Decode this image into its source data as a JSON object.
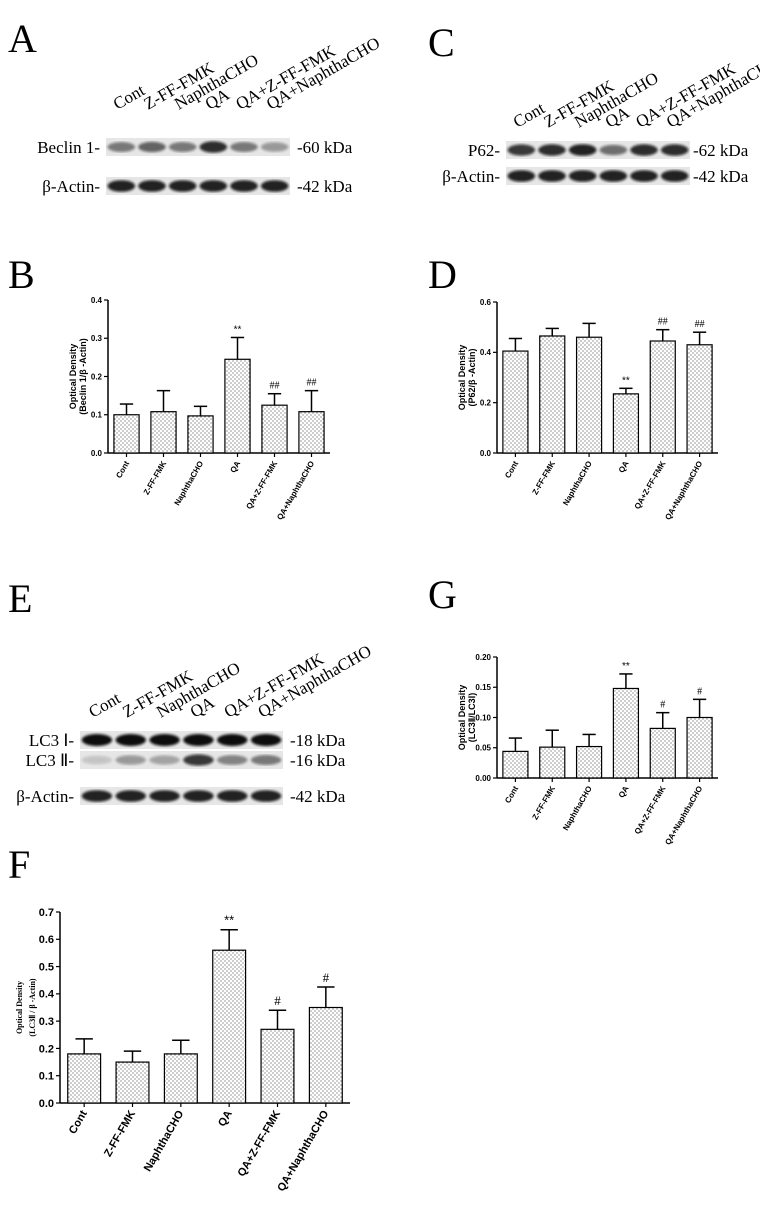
{
  "blots": [
    {
      "panel": "A",
      "lanes": [
        "Cont",
        "Z-FF-FMK",
        "NaphthaCHO",
        "QA",
        "QA+Z-FF-FMK",
        "QA+NaphthaCHO"
      ],
      "rows": [
        {
          "label": "Beclin 1-",
          "size": "-60 kDa"
        },
        {
          "label": "β-Actin-",
          "size": "-42 kDa"
        }
      ]
    },
    {
      "panel": "C",
      "lanes": [
        "Cont",
        "Z-FF-FMK",
        "NaphthaCHO",
        "QA",
        "QA+Z-FF-FMK",
        "QA+NaphthaCHO"
      ],
      "rows": [
        {
          "label": "P62-",
          "size": "-62 kDa"
        },
        {
          "label": "β-Actin-",
          "size": "-42 kDa"
        }
      ]
    },
    {
      "panel": "E",
      "lanes": [
        "Cont",
        "Z-FF-FMK",
        "NaphthaCHO",
        "QA",
        "QA+Z-FF-FMK",
        "QA+NaphthaCHO"
      ],
      "rows": [
        {
          "label": "LC3 Ⅰ-",
          "size": "-18 kDa"
        },
        {
          "label": "LC3 Ⅱ-",
          "size": "-16 kDa"
        },
        {
          "label": "β-Actin-",
          "size": "-42 kDa"
        }
      ]
    }
  ],
  "chart_data": [
    {
      "panel": "B",
      "type": "bar",
      "ylabel": [
        "Optical Density",
        "(Beclin 1/β -Actin)"
      ],
      "categories": [
        "Cont",
        "Z-FF-FMK",
        "NaphthaCHO",
        "QA",
        "QA+Z-FF-FMK",
        "QA+NaphthaCHO"
      ],
      "values": [
        0.1,
        0.108,
        0.097,
        0.245,
        0.125,
        0.108
      ],
      "errors": [
        0.028,
        0.055,
        0.025,
        0.057,
        0.03,
        0.055
      ],
      "annotations": [
        null,
        null,
        null,
        "**",
        "##",
        "##"
      ],
      "ylim": [
        0,
        0.4
      ],
      "yticks": [
        {
          "value": 0,
          "label": "0.0"
        },
        0.1,
        0.2,
        0.3,
        0.4
      ]
    },
    {
      "panel": "D",
      "type": "bar",
      "ylabel": [
        "Optical Density",
        "(P62/β -Actin)"
      ],
      "categories": [
        "Cont",
        "Z-FF-FMK",
        "NaphthaCHO",
        "QA",
        "QA+Z-FF-FMK",
        "QA+NaphthaCHO"
      ],
      "values": [
        0.405,
        0.465,
        0.46,
        0.235,
        0.445,
        0.43
      ],
      "errors": [
        0.05,
        0.03,
        0.055,
        0.022,
        0.045,
        0.05
      ],
      "annotations": [
        null,
        null,
        null,
        "**",
        "##",
        "##"
      ],
      "ylim": [
        0,
        0.6
      ],
      "yticks": [
        {
          "value": 0,
          "label": "0.0"
        },
        0.2,
        0.4,
        0.6
      ]
    },
    {
      "panel": "G",
      "type": "bar",
      "ylabel": [
        "Optical Density",
        "(LC3Ⅱ/LC3Ⅰ)"
      ],
      "categories": [
        "Cont",
        "Z-FF-FMK",
        "NaphthaCHO",
        "QA",
        "QA+Z-FF-FMK",
        "QA+NaphthaCHO"
      ],
      "values": [
        0.044,
        0.051,
        0.052,
        0.148,
        0.082,
        0.1
      ],
      "errors": [
        0.022,
        0.028,
        0.02,
        0.024,
        0.026,
        0.03
      ],
      "annotations": [
        null,
        null,
        null,
        "**",
        "#",
        "#"
      ],
      "ylim": [
        0,
        0.2
      ],
      "yticks": [
        {
          "value": 0,
          "label": "0.00"
        },
        0.05,
        {
          "value": 0.1,
          "label": "0.10"
        },
        0.15,
        {
          "value": 0.2,
          "label": "0.20"
        }
      ]
    },
    {
      "panel": "F",
      "type": "bar",
      "ylabel": [
        "Optical Density",
        "(LC3Ⅱ / β -Actin)"
      ],
      "categories": [
        "Cont",
        "Z-FF-FMK",
        "NaphthaCHO",
        "QA",
        "QA+Z-FF-FMK",
        "QA+NaphthaCHO"
      ],
      "values": [
        0.18,
        0.15,
        0.18,
        0.56,
        0.27,
        0.35
      ],
      "errors": [
        0.055,
        0.04,
        0.05,
        0.075,
        0.07,
        0.075
      ],
      "annotations": [
        null,
        null,
        null,
        "**",
        "#",
        "#"
      ],
      "ylim": [
        0,
        0.7
      ],
      "yticks": [
        {
          "value": 0,
          "label": "0.0"
        },
        0.1,
        0.2,
        0.3,
        0.4,
        0.5,
        0.6,
        0.7
      ]
    }
  ]
}
